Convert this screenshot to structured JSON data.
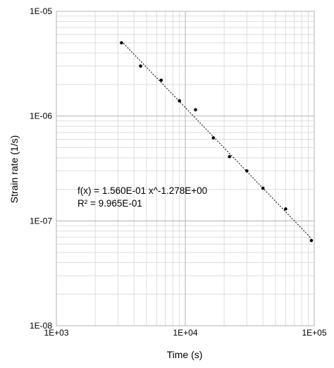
{
  "chart_data": {
    "type": "scatter",
    "title": "",
    "xlabel": "Time (s)",
    "ylabel": "Strain rate (1/s)",
    "xscale": "log",
    "yscale": "log",
    "xlim": [
      1000,
      100000
    ],
    "ylim": [
      1e-08,
      1e-05
    ],
    "x_tick_labels": [
      "1E+03",
      "1E+04",
      "1E+05"
    ],
    "y_tick_labels": [
      "1E-05",
      "1E-06",
      "1E-07",
      "1E-08"
    ],
    "grid": true,
    "legend": "none",
    "series": [
      {
        "marker_color": "#000000",
        "x": [
          3200,
          4500,
          6500,
          9000,
          12000,
          16500,
          22000,
          30000,
          40000,
          60000,
          95000
        ],
        "y": [
          5e-06,
          3e-06,
          2.2e-06,
          1.4e-06,
          1.15e-06,
          6.2e-07,
          4.1e-07,
          3e-07,
          2.05e-07,
          1.3e-07,
          6.5e-08
        ]
      }
    ],
    "trendline": {
      "kind": "power",
      "coefficient": 0.156,
      "exponent": -1.278,
      "x_range": [
        3200,
        95000
      ],
      "style": "dotted",
      "color": "#000000"
    },
    "annotations": [
      "f(x) = 1.560E-01 x^-1.278E+00",
      "R² = 9.965E-01"
    ],
    "colors": {
      "major_grid": "#b3b3b3",
      "minor_grid": "#dddddd",
      "frame": "#b3b3b3"
    }
  }
}
